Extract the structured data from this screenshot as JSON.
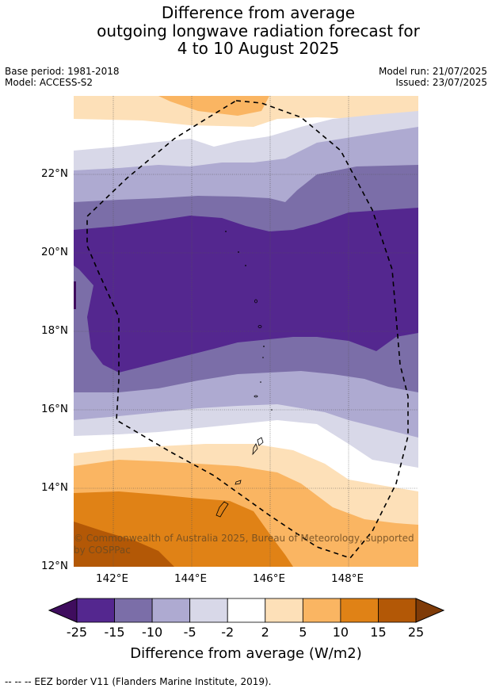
{
  "title": {
    "line1": "Difference from average",
    "line2": "outgoing longwave radiation forecast for",
    "line3": "4 to 10 August 2025"
  },
  "meta": {
    "base_period": "Base period: 1981-2018",
    "model": "Model: ACCESS-S2",
    "model_run": "Model run: 21/07/2025",
    "issued": "Issued: 23/07/2025"
  },
  "map": {
    "lat_labels": [
      "22°N",
      "20°N",
      "18°N",
      "16°N",
      "14°N",
      "12°N"
    ],
    "lon_labels": [
      "142°E",
      "144°E",
      "146°E",
      "148°E"
    ],
    "copyright": "© Commonwealth of Australia 2025, Bureau of Meteorology, supported by COSPPac"
  },
  "colorbar": {
    "ticks": [
      "-25",
      "-15",
      "-10",
      "-5",
      "-2",
      "2",
      "5",
      "10",
      "15",
      "25"
    ],
    "colors": [
      "#3f0d5e",
      "#54278f",
      "#7b6ea8",
      "#aeaad1",
      "#d8d8e8",
      "#ffffff",
      "#fde0b8",
      "#fab562",
      "#e08216",
      "#b35806",
      "#7f3b08"
    ],
    "label": "Difference from average (W/m2)"
  },
  "footer": "--  --  -- EEZ border V11 (Flanders Marine Institute, 2019)."
}
